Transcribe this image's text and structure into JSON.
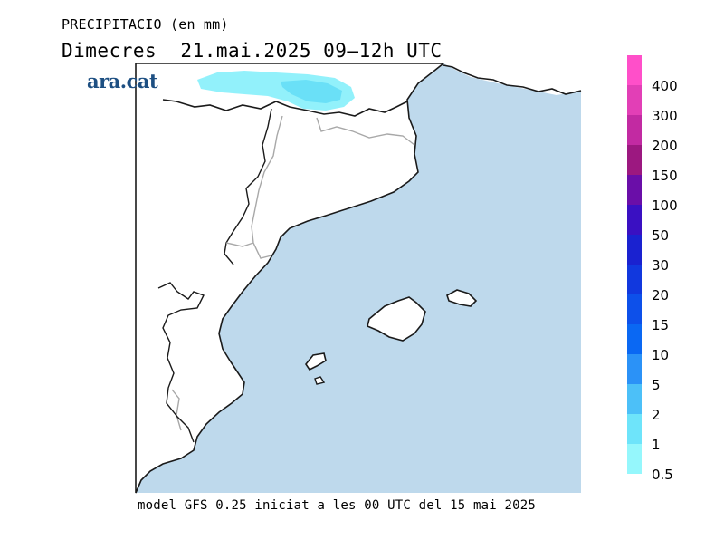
{
  "title": "PRECIPITACIO (en mm)",
  "subtitle": "Dimecres  21.mai.2025 09–12h UTC",
  "brand": "ara.cat",
  "footer": "model GFS 0.25 iniciat a les 00 UTC del 15 mai 2025",
  "colors": {
    "sea": "#bed9ec",
    "land": "#ffffff",
    "coast": "#1a1a1a",
    "border": "#a8a8a8",
    "precip_light": "#8cf0fb",
    "precip_mid": "#6ae0f7"
  },
  "legend": {
    "levels": [
      {
        "label": "400",
        "color": "#ff4fc9"
      },
      {
        "label": "300",
        "color": "#e23fb6"
      },
      {
        "label": "200",
        "color": "#c22aa2"
      },
      {
        "label": "150",
        "color": "#9c1880"
      },
      {
        "label": "100",
        "color": "#6a0ea8"
      },
      {
        "label": "50",
        "color": "#3a10c2"
      },
      {
        "label": "30",
        "color": "#1a22d0"
      },
      {
        "label": "20",
        "color": "#1138de"
      },
      {
        "label": "15",
        "color": "#0d50ea"
      },
      {
        "label": "10",
        "color": "#0a68f3"
      },
      {
        "label": "5",
        "color": "#2b92f7"
      },
      {
        "label": "2",
        "color": "#4cc0f8"
      },
      {
        "label": "1",
        "color": "#6ee4fa"
      },
      {
        "label": "0.5",
        "color": "#95f7fc"
      }
    ]
  }
}
